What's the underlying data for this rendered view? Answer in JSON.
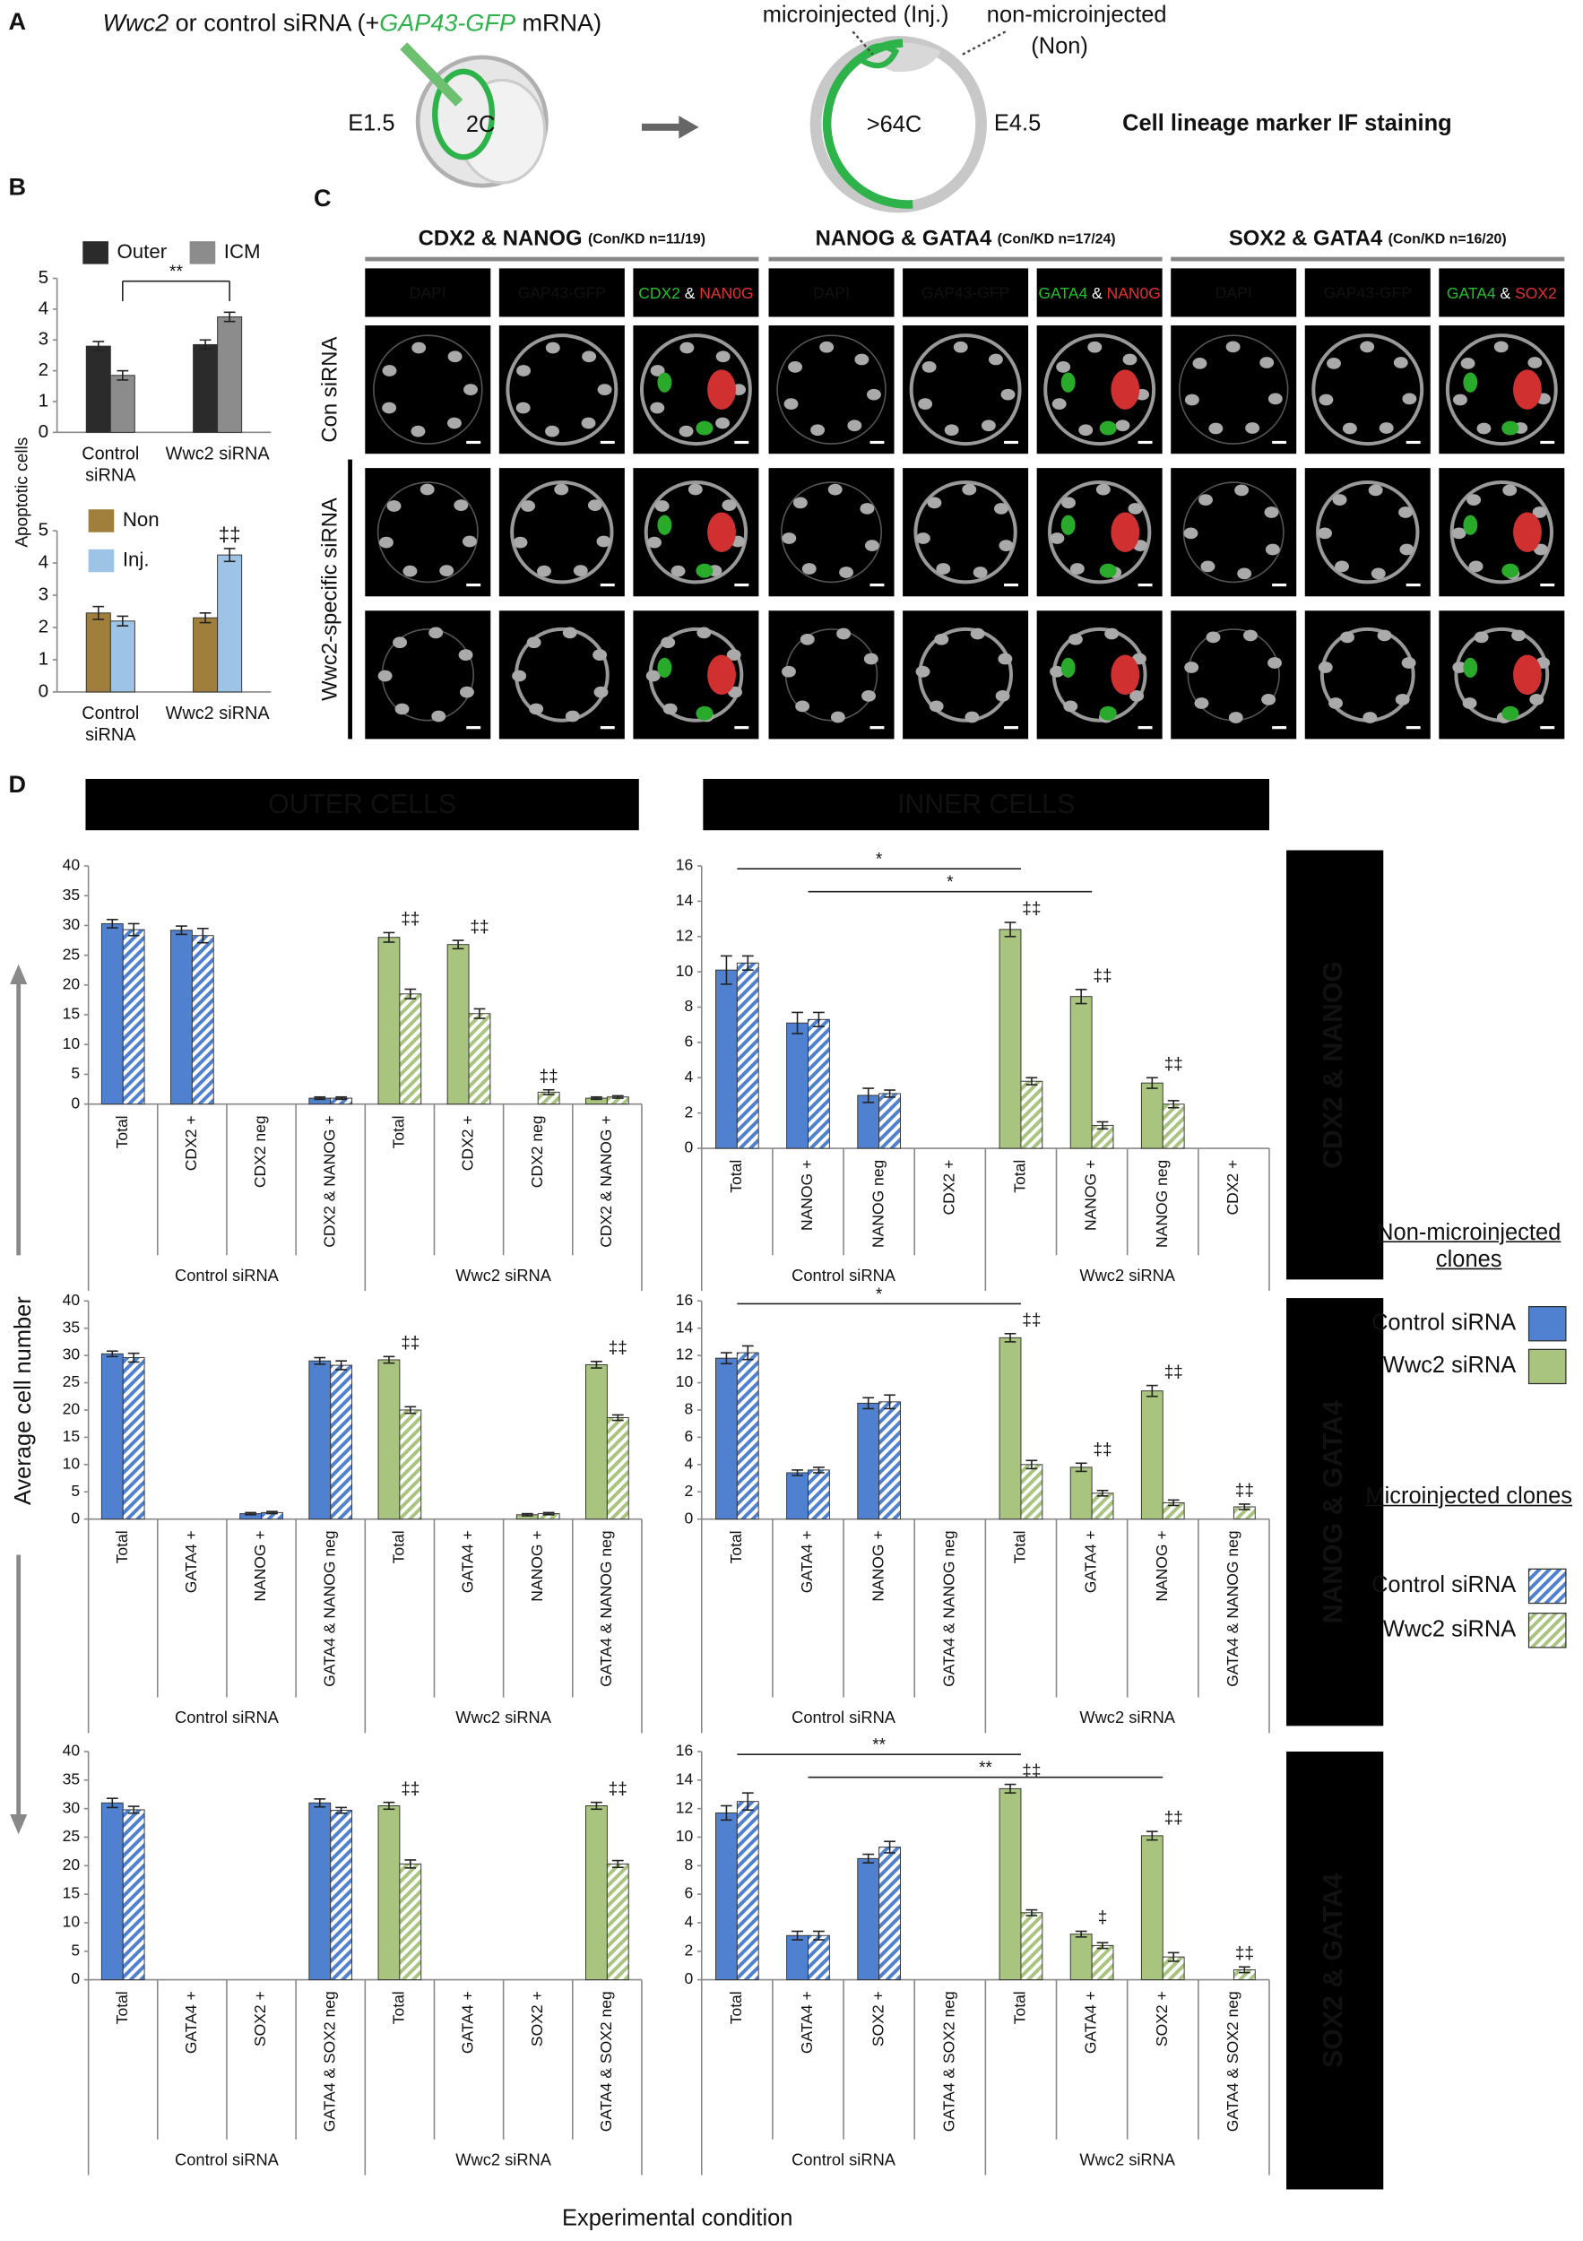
{
  "panel_a": {
    "label": "A",
    "title_parts": [
      "Wwc2",
      " or control siRNA (+",
      "GAP43-GFP",
      " mRNA)"
    ],
    "stage_start": "E1.5",
    "cells_start": "2C",
    "injected": "microinjected (Inj.)",
    "non_injected": "non-microinjected",
    "non_injected_abbr": "(Non)",
    "cells_end": ">64C",
    "stage_end": "E4.5",
    "readout": "Cell lineage marker IF staining"
  },
  "panel_b": {
    "label": "B",
    "y_label": "Apoptotic cells"
  },
  "panel_c": {
    "label": "C",
    "rows": [
      "Con siRNA",
      "Wwc2-specific siRNA"
    ],
    "stains": [
      {
        "title": "CDX2 & NANOG",
        "n": "(Con/KD n=11/19)",
        "channels": [
          "DAPI",
          "GAP43-GFP"
        ],
        "merge": [
          {
            "text": "CDX2",
            "color": "#22c02a"
          },
          {
            "text": " & ",
            "color": "#ffffff"
          },
          {
            "text": "NAN0G",
            "color": "#e53030"
          }
        ]
      },
      {
        "title": "NANOG & GATA4",
        "n": "(Con/KD n=17/24)",
        "channels": [
          "DAPI",
          "GAP43-GFP"
        ],
        "merge": [
          {
            "text": "GATA4",
            "color": "#22c02a"
          },
          {
            "text": " & ",
            "color": "#ffffff"
          },
          {
            "text": "NAN0G",
            "color": "#e53030"
          }
        ]
      },
      {
        "title": "SOX2 & GATA4",
        "n": "(Con/KD n=16/20)",
        "channels": [
          "DAPI",
          "GAP43-GFP"
        ],
        "merge": [
          {
            "text": "GATA4",
            "color": "#22c02a"
          },
          {
            "text": " & ",
            "color": "#ffffff"
          },
          {
            "text": "SOX2",
            "color": "#e53030"
          }
        ]
      }
    ]
  },
  "panel_d": {
    "label": "D",
    "columns": [
      "OUTER CELLS",
      "INNER CELLS"
    ],
    "rows": [
      "CDX2 & NANOG",
      "NANOG & GATA4",
      "SOX2 & GATA4"
    ],
    "y_label": "Average cell number",
    "x_label": "Experimental condition",
    "legend": [
      {
        "title": "Non-microinjected clones",
        "entries": [
          {
            "name": "Control siRNA",
            "color": "#4f81d0",
            "hatch": false
          },
          {
            "name": "Wwc2 siRNA",
            "color": "#a9c47f",
            "hatch": false
          }
        ]
      },
      {
        "title": "Microinjected clones",
        "entries": [
          {
            "name": "Control siRNA",
            "color": "#4f81d0",
            "hatch": true
          },
          {
            "name": "Wwc2 siRNA",
            "color": "#a9c47f",
            "hatch": true
          }
        ]
      }
    ]
  },
  "chart_data": [
    {
      "type": "bar",
      "categories": [
        "Control siRNA",
        "Wwc2 siRNA"
      ],
      "series": [
        {
          "name": "Outer",
          "color": "#2b2b2b",
          "values": [
            2.8,
            2.85
          ],
          "errors": [
            0.15,
            0.15
          ]
        },
        {
          "name": "ICM",
          "color": "#8c8c8c",
          "values": [
            1.85,
            3.75
          ],
          "errors": [
            0.15,
            0.15
          ]
        }
      ],
      "ylim": [
        0,
        5
      ],
      "yticks": [
        0,
        1,
        2,
        3,
        4,
        5
      ],
      "brackets": [
        {
          "text": "**",
          "from": 0,
          "to": 1
        }
      ]
    },
    {
      "type": "bar",
      "categories": [
        "Control siRNA",
        "Wwc2 siRNA"
      ],
      "series": [
        {
          "name": "Non",
          "color": "#a07f3c",
          "values": [
            2.45,
            2.3
          ],
          "errors": [
            0.2,
            0.15
          ]
        },
        {
          "name": "Inj.",
          "color": "#9dc3e6",
          "values": [
            2.2,
            4.25
          ],
          "errors": [
            0.15,
            0.2
          ]
        }
      ],
      "ylim": [
        0,
        5
      ],
      "yticks": [
        0,
        1,
        2,
        3,
        4,
        5
      ],
      "annotations": [
        {
          "text": "‡‡",
          "category": 1
        }
      ]
    },
    {
      "type": "bar",
      "groups": [
        "Control siRNA",
        "Wwc2 siRNA"
      ],
      "categories": [
        "Total",
        "CDX2 +",
        "CDX2 neg",
        "CDX2 & NANOG +",
        "Total",
        "CDX2 +",
        "CDX2 neg",
        "CDX2 & NANOG +"
      ],
      "series": [
        {
          "color": "#4f81d0",
          "hatch": false,
          "values": [
            30.3,
            29.2,
            0,
            1,
            null,
            null,
            null,
            null
          ],
          "errors": [
            0.7,
            0.7,
            null,
            0.2,
            null,
            null,
            null,
            null
          ]
        },
        {
          "color": "#4f81d0",
          "hatch": true,
          "values": [
            29.3,
            28.3,
            0,
            1,
            null,
            null,
            null,
            null
          ],
          "errors": [
            1,
            1.2,
            null,
            0.2,
            null,
            null,
            null,
            null
          ]
        },
        {
          "color": "#a9c47f",
          "hatch": false,
          "values": [
            null,
            null,
            null,
            null,
            28,
            26.8,
            0,
            1
          ],
          "errors": [
            null,
            null,
            null,
            null,
            0.8,
            0.7,
            null,
            0.2
          ]
        },
        {
          "color": "#a9c47f",
          "hatch": true,
          "values": [
            null,
            null,
            null,
            null,
            18.5,
            15.2,
            2,
            1.2
          ],
          "errors": [
            null,
            null,
            null,
            null,
            0.8,
            0.8,
            0.4,
            0.2
          ]
        }
      ],
      "ylim": [
        0,
        40
      ],
      "yticks": [
        0,
        5,
        10,
        15,
        20,
        25,
        30,
        35,
        40
      ],
      "annotations": [
        {
          "text": "‡‡",
          "category": 4
        },
        {
          "text": "‡‡",
          "category": 5
        },
        {
          "text": "‡‡",
          "category": 6
        }
      ]
    },
    {
      "type": "bar",
      "groups": [
        "Control siRNA",
        "Wwc2 siRNA"
      ],
      "categories": [
        "Total",
        "NANOG +",
        "NANOG neg",
        "CDX2 +",
        "Total",
        "NANOG +",
        "NANOG neg",
        "CDX2 +"
      ],
      "series": [
        {
          "color": "#4f81d0",
          "hatch": false,
          "values": [
            10.1,
            7.1,
            3,
            0,
            null,
            null,
            null,
            null
          ],
          "errors": [
            0.8,
            0.6,
            0.4,
            null,
            null,
            null,
            null,
            null
          ]
        },
        {
          "color": "#4f81d0",
          "hatch": true,
          "values": [
            10.5,
            7.3,
            3.1,
            0,
            null,
            null,
            null,
            null
          ],
          "errors": [
            0.4,
            0.4,
            0.2,
            null,
            null,
            null,
            null,
            null
          ]
        },
        {
          "color": "#a9c47f",
          "hatch": false,
          "values": [
            null,
            null,
            null,
            null,
            12.4,
            8.6,
            3.7,
            0
          ],
          "errors": [
            null,
            null,
            null,
            null,
            0.4,
            0.4,
            0.3,
            null
          ]
        },
        {
          "color": "#a9c47f",
          "hatch": true,
          "values": [
            null,
            null,
            null,
            null,
            3.8,
            1.3,
            2.5,
            0
          ],
          "errors": [
            null,
            null,
            null,
            null,
            0.2,
            0.2,
            0.2,
            null
          ]
        }
      ],
      "ylim": [
        0,
        16
      ],
      "yticks": [
        0,
        2,
        4,
        6,
        8,
        10,
        12,
        14,
        16
      ],
      "annotations": [
        {
          "text": "‡‡",
          "category": 4
        },
        {
          "text": "‡‡",
          "category": 5
        },
        {
          "text": "‡‡",
          "category": 6
        }
      ],
      "brackets": [
        {
          "text": "*",
          "from": 0,
          "to": 4
        },
        {
          "text": "*",
          "from": 1,
          "to": 5
        }
      ]
    },
    {
      "type": "bar",
      "groups": [
        "Control siRNA",
        "Wwc2 siRNA"
      ],
      "categories": [
        "Total",
        "GATA4 +",
        "NANOG +",
        "GATA4 & NANOG neg",
        "Total",
        "GATA4 +",
        "NANOG +",
        "GATA4 & NANOG neg"
      ],
      "series": [
        {
          "color": "#4f81d0",
          "hatch": false,
          "values": [
            30.3,
            0,
            1,
            29,
            null,
            null,
            null,
            null
          ],
          "errors": [
            0.5,
            null,
            0.2,
            0.6,
            null,
            null,
            null,
            null
          ]
        },
        {
          "color": "#4f81d0",
          "hatch": true,
          "values": [
            29.6,
            0,
            1.2,
            28.2,
            null,
            null,
            null,
            null
          ],
          "errors": [
            0.8,
            null,
            0.2,
            0.8,
            null,
            null,
            null,
            null
          ]
        },
        {
          "color": "#a9c47f",
          "hatch": false,
          "values": [
            null,
            null,
            null,
            null,
            29.2,
            0,
            0.8,
            28.3
          ],
          "errors": [
            null,
            null,
            null,
            null,
            0.6,
            null,
            0.2,
            0.6
          ]
        },
        {
          "color": "#a9c47f",
          "hatch": true,
          "values": [
            null,
            null,
            null,
            null,
            20,
            0,
            1,
            18.6
          ],
          "errors": [
            null,
            null,
            null,
            null,
            0.6,
            null,
            0.2,
            0.5
          ]
        }
      ],
      "ylim": [
        0,
        40
      ],
      "yticks": [
        0,
        5,
        10,
        15,
        20,
        25,
        30,
        35,
        40
      ],
      "annotations": [
        {
          "text": "‡‡",
          "category": 4
        },
        {
          "text": "‡‡",
          "category": 7
        }
      ]
    },
    {
      "type": "bar",
      "groups": [
        "Control siRNA",
        "Wwc2 siRNA"
      ],
      "categories": [
        "Total",
        "GATA4 +",
        "NANOG +",
        "GATA4 & NANOG neg",
        "Total",
        "GATA4 +",
        "NANOG +",
        "GATA4 & NANOG neg"
      ],
      "series": [
        {
          "color": "#4f81d0",
          "hatch": false,
          "values": [
            11.8,
            3.4,
            8.5,
            0,
            null,
            null,
            null,
            null
          ],
          "errors": [
            0.4,
            0.2,
            0.4,
            null,
            null,
            null,
            null,
            null
          ]
        },
        {
          "color": "#4f81d0",
          "hatch": true,
          "values": [
            12.2,
            3.6,
            8.6,
            0,
            null,
            null,
            null,
            null
          ],
          "errors": [
            0.5,
            0.2,
            0.5,
            null,
            null,
            null,
            null,
            null
          ]
        },
        {
          "color": "#a9c47f",
          "hatch": false,
          "values": [
            null,
            null,
            null,
            null,
            13.3,
            3.8,
            9.4,
            0
          ],
          "errors": [
            null,
            null,
            null,
            null,
            0.3,
            0.3,
            0.4,
            null
          ]
        },
        {
          "color": "#a9c47f",
          "hatch": true,
          "values": [
            null,
            null,
            null,
            null,
            4,
            1.9,
            1.2,
            0.9
          ],
          "errors": [
            null,
            null,
            null,
            null,
            0.3,
            0.2,
            0.2,
            0.2
          ]
        }
      ],
      "ylim": [
        0,
        16
      ],
      "yticks": [
        0,
        2,
        4,
        6,
        8,
        10,
        12,
        14,
        16
      ],
      "annotations": [
        {
          "text": "‡‡",
          "category": 4
        },
        {
          "text": "‡‡",
          "category": 5
        },
        {
          "text": "‡‡",
          "category": 6
        },
        {
          "text": "‡‡",
          "category": 7
        }
      ],
      "brackets": [
        {
          "text": "*",
          "from": 0,
          "to": 4
        }
      ]
    },
    {
      "type": "bar",
      "groups": [
        "Control siRNA",
        "Wwc2 siRNA"
      ],
      "categories": [
        "Total",
        "GATA4 +",
        "SOX2 +",
        "GATA4 & SOX2 neg",
        "Total",
        "GATA4 +",
        "SOX2 +",
        "GATA4 & SOX2 neg"
      ],
      "series": [
        {
          "color": "#4f81d0",
          "hatch": false,
          "values": [
            31,
            0,
            0,
            31,
            null,
            null,
            null,
            null
          ],
          "errors": [
            0.8,
            null,
            null,
            0.7,
            null,
            null,
            null,
            null
          ]
        },
        {
          "color": "#4f81d0",
          "hatch": true,
          "values": [
            29.8,
            0,
            0,
            29.7,
            null,
            null,
            null,
            null
          ],
          "errors": [
            0.6,
            null,
            null,
            0.5,
            null,
            null,
            null,
            null
          ]
        },
        {
          "color": "#a9c47f",
          "hatch": false,
          "values": [
            null,
            null,
            null,
            null,
            30.5,
            0,
            0,
            30.5
          ],
          "errors": [
            null,
            null,
            null,
            null,
            0.6,
            null,
            null,
            0.6
          ]
        },
        {
          "color": "#a9c47f",
          "hatch": true,
          "values": [
            null,
            null,
            null,
            null,
            20.3,
            0,
            0,
            20.3
          ],
          "errors": [
            null,
            null,
            null,
            null,
            0.7,
            null,
            null,
            0.6
          ]
        }
      ],
      "ylim": [
        0,
        40
      ],
      "yticks": [
        0,
        5,
        10,
        15,
        20,
        25,
        30,
        35,
        40
      ],
      "annotations": [
        {
          "text": "‡‡",
          "category": 4
        },
        {
          "text": "‡‡",
          "category": 7
        }
      ]
    },
    {
      "type": "bar",
      "groups": [
        "Control siRNA",
        "Wwc2 siRNA"
      ],
      "categories": [
        "Total",
        "GATA4 +",
        "SOX2 +",
        "GATA4 & SOX2 neg",
        "Total",
        "GATA4 +",
        "SOX2 +",
        "GATA4 & SOX2 neg"
      ],
      "series": [
        {
          "color": "#4f81d0",
          "hatch": false,
          "values": [
            11.7,
            3.1,
            8.5,
            0,
            null,
            null,
            null,
            null
          ],
          "errors": [
            0.5,
            0.3,
            0.3,
            null,
            null,
            null,
            null,
            null
          ]
        },
        {
          "color": "#4f81d0",
          "hatch": true,
          "values": [
            12.5,
            3.1,
            9.3,
            0,
            null,
            null,
            null,
            null
          ],
          "errors": [
            0.6,
            0.3,
            0.4,
            null,
            null,
            null,
            null,
            null
          ]
        },
        {
          "color": "#a9c47f",
          "hatch": false,
          "values": [
            null,
            null,
            null,
            null,
            13.4,
            3.2,
            10.1,
            0
          ],
          "errors": [
            null,
            null,
            null,
            null,
            0.3,
            0.2,
            0.3,
            null
          ]
        },
        {
          "color": "#a9c47f",
          "hatch": true,
          "values": [
            null,
            null,
            null,
            null,
            4.7,
            2.4,
            1.6,
            0.7
          ],
          "errors": [
            null,
            null,
            null,
            null,
            0.2,
            0.2,
            0.3,
            0.2
          ]
        }
      ],
      "ylim": [
        0,
        16
      ],
      "yticks": [
        0,
        2,
        4,
        6,
        8,
        10,
        12,
        14,
        16
      ],
      "annotations": [
        {
          "text": "‡‡",
          "category": 4
        },
        {
          "text": "‡",
          "category": 5
        },
        {
          "text": "‡‡",
          "category": 6
        },
        {
          "text": "‡‡",
          "category": 7
        }
      ],
      "brackets": [
        {
          "text": "**",
          "from": 0,
          "to": 4
        },
        {
          "text": "**",
          "from": 1,
          "to": 6
        }
      ]
    }
  ]
}
